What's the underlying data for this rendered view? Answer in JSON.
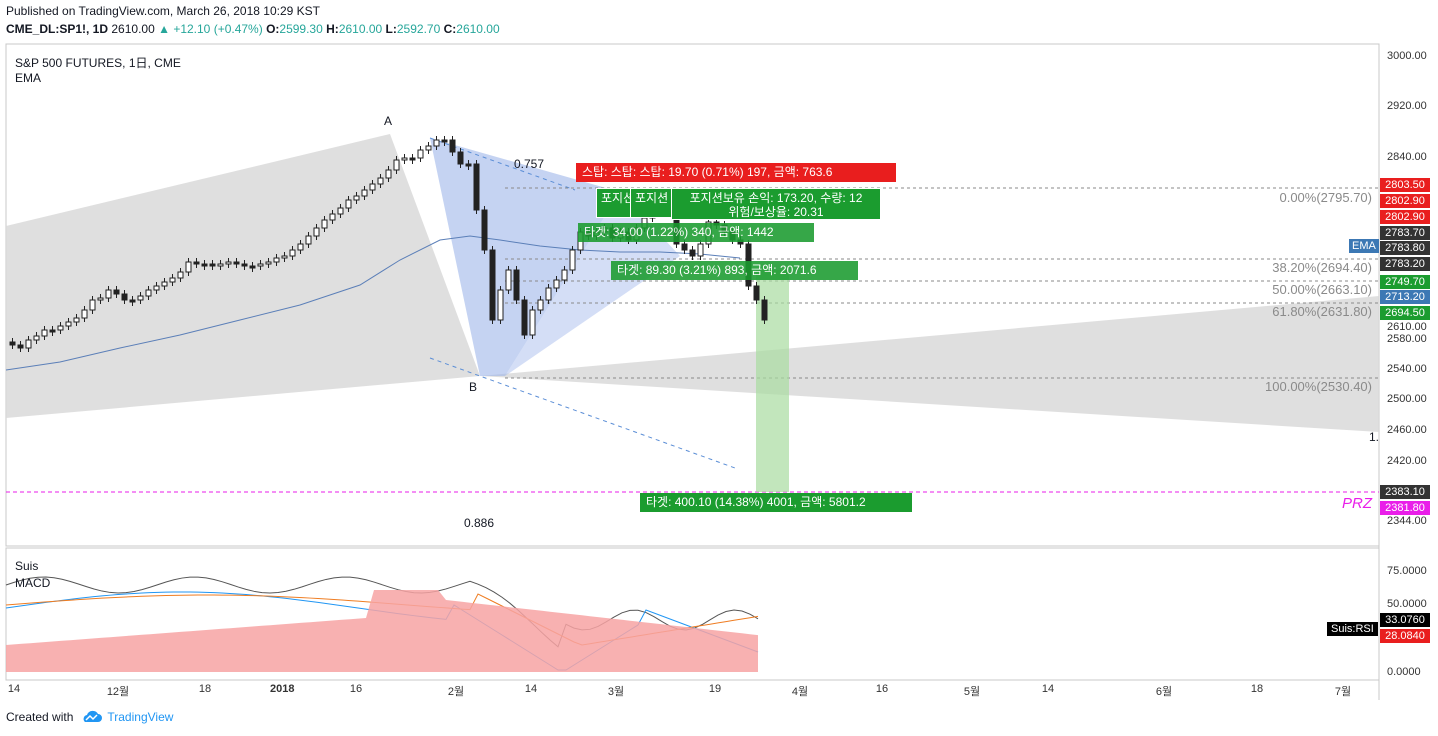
{
  "header": {
    "published": "Published on TradingView.com, March 26, 2018 10:29 KST",
    "symbol": "CME_DL:SP1!, 1D",
    "last": "2610.00",
    "change": "▲ +12.10 (+0.47%)",
    "open_label": "O:",
    "open": "2599.30",
    "high_label": "H:",
    "high": "2610.00",
    "low_label": "L:",
    "low": "2592.70",
    "close_label": "C:",
    "close": "2610.00"
  },
  "main_legend": {
    "title": "S&P 500 FUTURES, 1日, CME",
    "indicator": "EMA"
  },
  "sub_legend": {
    "indicator1": "Suis",
    "indicator2": "MACD"
  },
  "price_axis": [
    "3000.00",
    "2920.00",
    "2840.00",
    "2610.00",
    "2580.00",
    "2540.00",
    "2500.00",
    "2460.00",
    "2420.00",
    "2344.00"
  ],
  "price_badges": [
    {
      "text": "2803.50",
      "color": "#e91e1e"
    },
    {
      "text": "2802.90",
      "color": "#e91e1e"
    },
    {
      "text": "2802.90",
      "color": "#e91e1e"
    },
    {
      "text": "2783.70",
      "color": "#333333"
    },
    {
      "text": "2783.80",
      "color": "#333333"
    },
    {
      "text": "2783.20",
      "color": "#333333"
    },
    {
      "text": "2749.70",
      "color": "#1b9c2f"
    },
    {
      "text": "2713.20",
      "color": "#3c78b4"
    },
    {
      "text": "2694.50",
      "color": "#1b9c2f"
    },
    {
      "text": "2383.10",
      "color": "#333333"
    },
    {
      "text": "2381.80",
      "color": "#e91ee9"
    }
  ],
  "ema_tag": "EMA",
  "fib_levels": [
    "0.00%(2795.70)",
    "38.20%(2694.40)",
    "50.00%(2663.10)",
    "61.80%(2631.80)",
    "100.00%(2530.40)"
  ],
  "pattern_labels": {
    "a": "A",
    "b": "B",
    "r1": "0.757",
    "r2": "0.886",
    "r3": "1.",
    "prz": "PRZ"
  },
  "labels": {
    "stop": "스탑:  스탑:   스탑: 19.70 (0.71%) 197, 금액: 763.6",
    "pos1": "포지션",
    "pos2": "포지션",
    "pos3_line1": "포지션보유 손익: 173.20, 수량: 12",
    "pos3_line2": "위험/보상율: 20.31",
    "target1": "타겟: 34.00 (1.22%) 340, 금액: 1442",
    "target2": "타겟: 89.30 (3.21%) 893, 금액: 2071.6",
    "target3": "타겟: 400.10 (14.38%) 4001, 금액: 5801.2"
  },
  "osc_axis": [
    "75.0000",
    "50.0000",
    "0.0000"
  ],
  "osc_badges": [
    {
      "text": "33.0760",
      "color": "#000000"
    },
    {
      "text": "28.0840",
      "color": "#e91e1e"
    }
  ],
  "osc_tag": "Suis:RSI",
  "time_axis": [
    "14",
    "12월",
    "18",
    "2018",
    "16",
    "2월",
    "14",
    "3월",
    "19",
    "4월",
    "16",
    "5월",
    "14",
    "6월",
    "18",
    "7월"
  ],
  "footer": {
    "created": "Created with",
    "brand": "TradingView"
  },
  "colors": {
    "up": "#26a69a",
    "candle": "#222222",
    "ema": "#5b7fb8",
    "fib": "#9e9e9e",
    "prz": "#e91ee9",
    "macd_hist": "#f7a3a3"
  }
}
